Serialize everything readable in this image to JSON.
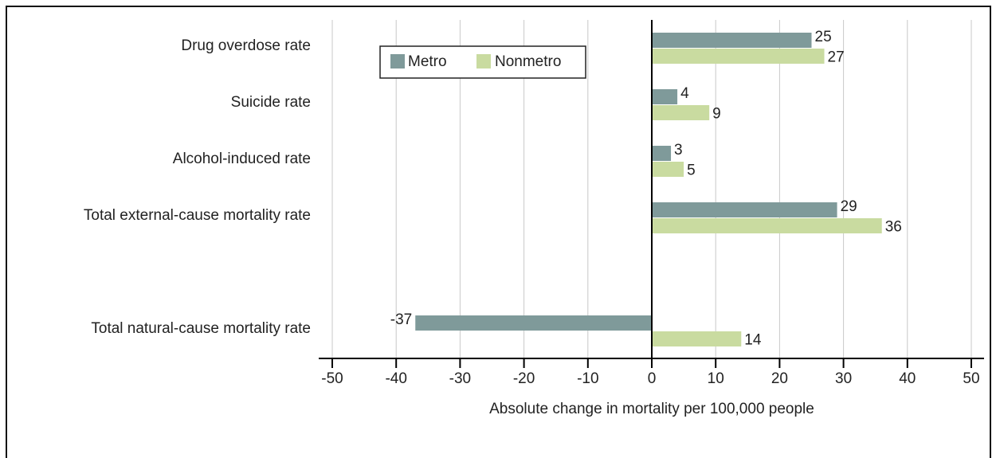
{
  "chart_data": {
    "type": "bar",
    "orientation": "horizontal",
    "categories": [
      "Drug overdose rate",
      "Suicide rate",
      "Alcohol-induced rate",
      "Total external-cause mortality rate",
      null,
      "Total natural-cause mortality rate"
    ],
    "series": [
      {
        "name": "Metro",
        "color": "#7f9a9a",
        "values": [
          25,
          4,
          3,
          29,
          null,
          -37
        ]
      },
      {
        "name": "Nonmetro",
        "color": "#c9dba0",
        "values": [
          27,
          9,
          5,
          36,
          null,
          14
        ]
      }
    ],
    "xlabel": "Absolute change in mortality per 100,000 people",
    "xlim": [
      -50,
      50
    ],
    "xticks": [
      -50,
      -40,
      -30,
      -20,
      -10,
      0,
      10,
      20,
      30,
      40,
      50
    ],
    "grid": true,
    "legend": "upper left"
  }
}
